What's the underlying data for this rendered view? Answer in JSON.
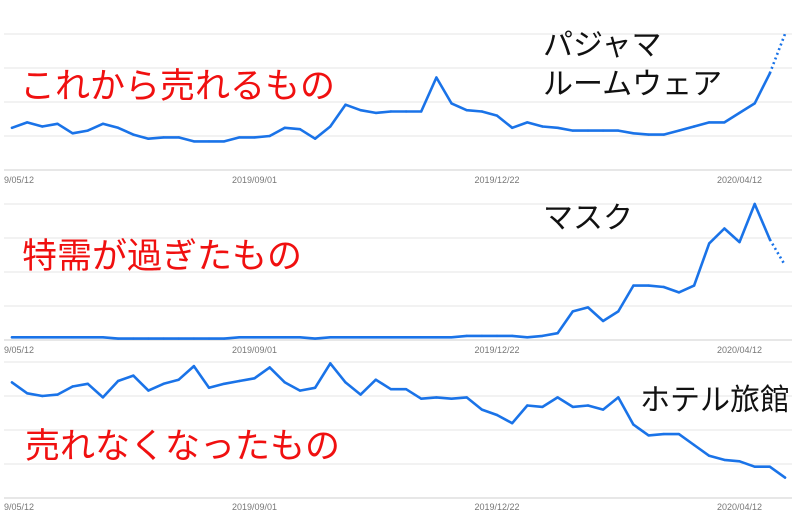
{
  "colors": {
    "line": "#1a73e8",
    "grid": "#e4e4e4",
    "baseline": "#cfcfcf",
    "tick_text": "#777777",
    "category_text": "#f01010",
    "item_text": "#111111"
  },
  "chart_data": [
    {
      "type": "line",
      "annotations": {
        "category": "これから売れるもの",
        "items": [
          "パジャマ",
          "ルームウェア"
        ]
      },
      "x": [
        "2019-05-12",
        "2019-05-19",
        "2019-05-26",
        "2019-06-02",
        "2019-06-09",
        "2019-06-16",
        "2019-06-23",
        "2019-06-30",
        "2019-07-07",
        "2019-07-14",
        "2019-07-21",
        "2019-07-28",
        "2019-08-04",
        "2019-08-11",
        "2019-08-18",
        "2019-08-25",
        "2019-09-01",
        "2019-09-08",
        "2019-09-15",
        "2019-09-22",
        "2019-09-29",
        "2019-10-06",
        "2019-10-13",
        "2019-10-20",
        "2019-10-27",
        "2019-11-03",
        "2019-11-10",
        "2019-11-17",
        "2019-11-24",
        "2019-12-01",
        "2019-12-08",
        "2019-12-15",
        "2019-12-22",
        "2019-12-29",
        "2020-01-05",
        "2020-01-12",
        "2020-01-19",
        "2020-01-26",
        "2020-02-02",
        "2020-02-09",
        "2020-02-16",
        "2020-02-23",
        "2020-03-01",
        "2020-03-08",
        "2020-03-15",
        "2020-03-22",
        "2020-03-29",
        "2020-04-05",
        "2020-04-12",
        "2020-04-19",
        "2020-04-26",
        "2020-05-03"
      ],
      "series": [
        {
          "values": [
            31,
            35,
            32,
            34,
            27,
            29,
            34,
            31,
            26,
            23,
            24,
            24,
            21,
            21,
            21,
            24,
            24,
            25,
            31,
            30,
            23,
            32,
            48,
            44,
            42,
            43,
            43,
            43,
            68,
            49,
            44,
            43,
            40,
            31,
            35,
            32,
            31,
            29,
            29,
            29,
            29,
            27,
            26,
            26,
            29,
            32,
            35,
            35,
            42,
            49,
            71,
            100
          ]
        }
      ],
      "xticks": [
        {
          "x": "2019-05-12",
          "label": "9/05/12"
        },
        {
          "x": "2019-09-01",
          "label": "2019/09/01"
        },
        {
          "x": "2019-12-22",
          "label": "2019/12/22"
        },
        {
          "x": "2020-04-12",
          "label": "2020/04/12"
        }
      ],
      "ylim": [
        0,
        100
      ],
      "grid": true,
      "dotted_last_segment": true
    },
    {
      "type": "line",
      "annotations": {
        "category": "特需が過ぎたもの",
        "items": [
          "マスク"
        ]
      },
      "x": [
        "2019-05-12",
        "2019-05-19",
        "2019-05-26",
        "2019-06-02",
        "2019-06-09",
        "2019-06-16",
        "2019-06-23",
        "2019-06-30",
        "2019-07-07",
        "2019-07-14",
        "2019-07-21",
        "2019-07-28",
        "2019-08-04",
        "2019-08-11",
        "2019-08-18",
        "2019-08-25",
        "2019-09-01",
        "2019-09-08",
        "2019-09-15",
        "2019-09-22",
        "2019-09-29",
        "2019-10-06",
        "2019-10-13",
        "2019-10-20",
        "2019-10-27",
        "2019-11-03",
        "2019-11-10",
        "2019-11-17",
        "2019-11-24",
        "2019-12-01",
        "2019-12-08",
        "2019-12-15",
        "2019-12-22",
        "2019-12-29",
        "2020-01-05",
        "2020-01-12",
        "2020-01-19",
        "2020-01-26",
        "2020-02-02",
        "2020-02-09",
        "2020-02-16",
        "2020-02-23",
        "2020-03-01",
        "2020-03-08",
        "2020-03-15",
        "2020-03-22",
        "2020-03-29",
        "2020-04-05",
        "2020-04-12",
        "2020-04-19",
        "2020-04-26",
        "2020-05-03"
      ],
      "series": [
        {
          "values": [
            2,
            2,
            2,
            2,
            2,
            2,
            2,
            1,
            1,
            1,
            1,
            1,
            1,
            1,
            1,
            2,
            2,
            2,
            2,
            2,
            1,
            2,
            2,
            2,
            2,
            2,
            2,
            2,
            2,
            2,
            3,
            3,
            3,
            3,
            2,
            3,
            5,
            21,
            24,
            14,
            21,
            40,
            40,
            39,
            35,
            40,
            71,
            82,
            72,
            100,
            74,
            55
          ]
        }
      ],
      "xticks": [
        {
          "x": "2019-05-12",
          "label": "9/05/12"
        },
        {
          "x": "2019-09-01",
          "label": "2019/09/01"
        },
        {
          "x": "2019-12-22",
          "label": "2019/12/22"
        },
        {
          "x": "2020-04-12",
          "label": "2020/04/12"
        }
      ],
      "ylim": [
        0,
        100
      ],
      "grid": true,
      "dotted_last_segment": true
    },
    {
      "type": "line",
      "annotations": {
        "category": "売れなくなったもの",
        "items": [
          "ホテル旅館"
        ]
      },
      "x": [
        "2019-05-12",
        "2019-05-19",
        "2019-05-26",
        "2019-06-02",
        "2019-06-09",
        "2019-06-16",
        "2019-06-23",
        "2019-06-30",
        "2019-07-07",
        "2019-07-14",
        "2019-07-21",
        "2019-07-28",
        "2019-08-04",
        "2019-08-11",
        "2019-08-18",
        "2019-08-25",
        "2019-09-01",
        "2019-09-08",
        "2019-09-15",
        "2019-09-22",
        "2019-09-29",
        "2019-10-06",
        "2019-10-13",
        "2019-10-20",
        "2019-10-27",
        "2019-11-03",
        "2019-11-10",
        "2019-11-17",
        "2019-11-24",
        "2019-12-01",
        "2019-12-08",
        "2019-12-15",
        "2019-12-22",
        "2019-12-29",
        "2020-01-05",
        "2020-01-12",
        "2020-01-19",
        "2020-01-26",
        "2020-02-02",
        "2020-02-09",
        "2020-02-16",
        "2020-02-23",
        "2020-03-01",
        "2020-03-08",
        "2020-03-15",
        "2020-03-22",
        "2020-03-29",
        "2020-04-05",
        "2020-04-12",
        "2020-04-19",
        "2020-04-26",
        "2020-05-03"
      ],
      "series": [
        {
          "values": [
            85,
            77,
            75,
            76,
            82,
            84,
            74,
            86,
            90,
            79,
            84,
            87,
            97,
            81,
            84,
            86,
            88,
            96,
            85,
            79,
            81,
            99,
            85,
            76,
            87,
            80,
            80,
            73,
            74,
            73,
            74,
            65,
            61,
            55,
            68,
            67,
            74,
            67,
            68,
            65,
            74,
            54,
            46,
            47,
            47,
            39,
            31,
            28,
            27,
            23,
            23,
            15
          ]
        }
      ],
      "xticks": [
        {
          "x": "2019-05-12",
          "label": "9/05/12"
        },
        {
          "x": "2019-09-01",
          "label": "2019/09/01"
        },
        {
          "x": "2019-12-22",
          "label": "2019/12/22"
        },
        {
          "x": "2020-04-12",
          "label": "2020/04/12"
        }
      ],
      "ylim": [
        0,
        100
      ],
      "grid": true,
      "dotted_last_segment": false
    }
  ]
}
